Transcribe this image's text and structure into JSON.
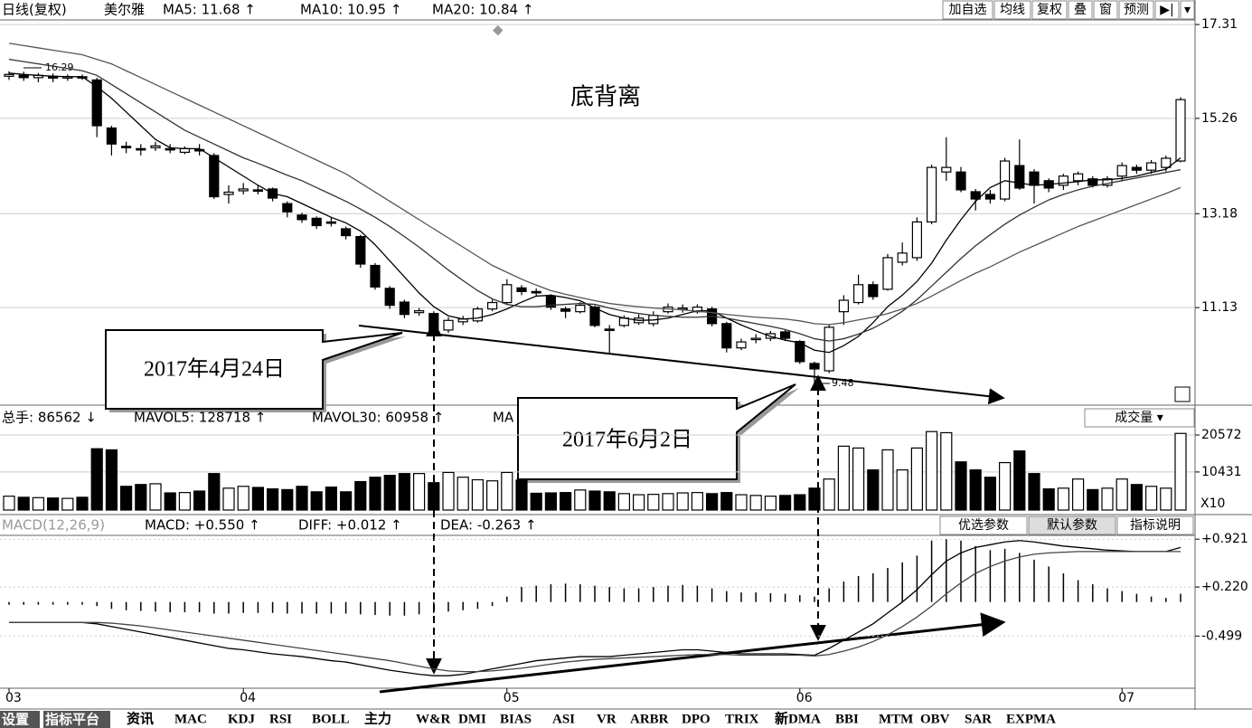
{
  "header": {
    "legend": [
      "日线(复权)",
      "美尔雅",
      "MA5: 11.68 ↑",
      "MA10: 10.95 ↑",
      "MA20: 10.84 ↑"
    ],
    "buttons": [
      "加自选",
      "均线",
      "复权",
      "叠",
      "窗",
      "预测",
      "▶|",
      "▾"
    ]
  },
  "volume_header": {
    "legend": [
      "总手: 86562 ↓",
      "MAVOL5: 128718 ↑",
      "MAVOL30: 60958 ↑",
      "MA"
    ],
    "dropdown": "成交量 ▾"
  },
  "macd_header": {
    "legend": [
      "MACD(12,26,9)",
      "MACD: +0.550 ↑",
      "DIFF: +0.012 ↑",
      "DEA: -0.263 ↑"
    ],
    "buttons": [
      "优选参数",
      "默认参数",
      "指标说明"
    ]
  },
  "annotations": {
    "title": "底背离",
    "callouts": [
      "2017年4月24日",
      "2017年6月2日"
    ]
  },
  "tabs": [
    "设置",
    "指标平台",
    "资讯",
    "MAC",
    "KDJ",
    "RSI",
    "BOLL",
    "主力",
    "W&R",
    "DMI",
    "BIAS",
    "ASI",
    "VR",
    "ARBR",
    "DPO",
    "TRIX",
    "新DMA",
    "BBI",
    "MTM",
    "OBV",
    "SAR",
    "EXPMA"
  ],
  "chart_data": [
    {
      "type": "candlestick",
      "categories": [
        "03",
        null,
        null,
        null,
        null,
        null,
        null,
        null,
        null,
        null,
        null,
        null,
        null,
        null,
        null,
        null,
        "04",
        null,
        null,
        null,
        null,
        null,
        null,
        null,
        null,
        null,
        null,
        null,
        null,
        null,
        null,
        null,
        null,
        null,
        "05",
        null,
        null,
        null,
        null,
        null,
        null,
        null,
        null,
        null,
        null,
        null,
        null,
        null,
        null,
        null,
        null,
        null,
        null,
        null,
        "06",
        null,
        null,
        null,
        null,
        null,
        null,
        null,
        null,
        null,
        null,
        null,
        null,
        null,
        null,
        null,
        null,
        null,
        null,
        null,
        null,
        null,
        "07",
        null,
        null,
        null,
        null
      ],
      "open": [
        16.18,
        16.2,
        16.15,
        16.18,
        16.15,
        16.17,
        16.1,
        15.05,
        14.65,
        14.6,
        14.62,
        14.6,
        14.52,
        14.58,
        14.45,
        13.6,
        13.68,
        13.7,
        13.72,
        13.4,
        13.15,
        13.08,
        13.0,
        12.85,
        12.68,
        12.05,
        11.55,
        11.25,
        11.02,
        11.0,
        10.64,
        10.82,
        10.84,
        11.1,
        11.24,
        11.56,
        11.48,
        11.38,
        11.1,
        11.04,
        11.14,
        10.66,
        10.74,
        10.8,
        10.78,
        11.04,
        11.1,
        11.04,
        11.1,
        10.78,
        10.25,
        10.44,
        10.46,
        10.6,
        10.39,
        9.91,
        9.75,
        11.04,
        11.24,
        11.63,
        11.53,
        12.12,
        12.22,
        13.0,
        14.09,
        14.09,
        13.66,
        13.6,
        13.5,
        14.23,
        14.09,
        13.9,
        13.8,
        13.9,
        13.94,
        13.8,
        14.0,
        14.19,
        14.13,
        14.19,
        14.33
      ],
      "high": [
        16.29,
        16.28,
        16.25,
        16.24,
        16.22,
        16.22,
        16.15,
        15.1,
        14.75,
        14.7,
        14.75,
        14.7,
        14.65,
        14.7,
        14.5,
        13.8,
        13.85,
        13.8,
        13.75,
        13.45,
        13.2,
        13.12,
        13.1,
        12.9,
        12.72,
        12.1,
        11.6,
        11.3,
        11.12,
        11.05,
        10.92,
        10.95,
        11.15,
        11.3,
        11.75,
        11.62,
        11.55,
        11.42,
        11.15,
        11.25,
        11.18,
        10.75,
        10.96,
        10.98,
        11.05,
        11.22,
        11.2,
        11.2,
        11.15,
        10.82,
        10.45,
        10.55,
        10.62,
        10.64,
        10.42,
        9.95,
        10.75,
        11.4,
        11.85,
        11.7,
        12.3,
        12.55,
        13.1,
        14.25,
        14.85,
        14.2,
        13.72,
        13.7,
        14.4,
        14.8,
        14.15,
        13.95,
        14.05,
        14.1,
        14.0,
        14.0,
        14.3,
        14.25,
        14.35,
        14.45,
        15.72
      ],
      "low": [
        16.1,
        16.08,
        16.05,
        16.05,
        16.08,
        16.1,
        14.85,
        14.45,
        14.5,
        14.45,
        14.55,
        14.5,
        14.48,
        14.45,
        13.5,
        13.4,
        13.6,
        13.6,
        13.45,
        13.1,
        12.98,
        12.85,
        12.9,
        12.62,
        12.0,
        11.52,
        11.1,
        10.9,
        10.95,
        10.5,
        10.58,
        10.75,
        10.8,
        11.05,
        11.2,
        11.4,
        11.38,
        11.08,
        10.9,
        11.0,
        10.7,
        10.14,
        10.7,
        10.75,
        10.72,
        11.0,
        11.02,
        11.0,
        10.72,
        10.15,
        10.2,
        10.35,
        10.4,
        10.4,
        9.9,
        9.48,
        9.7,
        10.75,
        11.2,
        11.3,
        11.5,
        12.05,
        12.15,
        12.95,
        13.9,
        13.65,
        13.25,
        13.4,
        13.45,
        13.7,
        13.4,
        13.65,
        13.7,
        13.8,
        13.75,
        13.75,
        13.9,
        14.05,
        14.05,
        14.1,
        14.3
      ],
      "close": [
        16.22,
        16.15,
        16.2,
        16.14,
        16.17,
        16.15,
        15.1,
        14.7,
        14.63,
        14.58,
        14.66,
        14.58,
        14.6,
        14.56,
        13.55,
        13.65,
        13.72,
        13.68,
        13.52,
        13.22,
        13.05,
        12.92,
        12.98,
        12.7,
        12.08,
        11.58,
        11.18,
        10.98,
        11.06,
        10.58,
        10.85,
        10.88,
        11.1,
        11.24,
        11.63,
        11.48,
        11.46,
        11.14,
        11.05,
        11.18,
        10.74,
        10.64,
        10.9,
        10.9,
        10.96,
        11.14,
        11.12,
        11.14,
        10.78,
        10.25,
        10.38,
        10.46,
        10.56,
        10.46,
        9.95,
        9.79,
        10.7,
        11.29,
        11.63,
        11.37,
        12.22,
        12.32,
        13.0,
        14.19,
        14.19,
        13.7,
        13.5,
        13.5,
        14.33,
        13.74,
        13.8,
        13.74,
        14.0,
        14.05,
        13.8,
        13.94,
        14.23,
        14.13,
        14.29,
        14.39,
        15.67
      ],
      "up_color": "#ffffff",
      "down_color": "#000000",
      "series": [
        {
          "color": "#000000",
          "values": [
            16.25,
            16.22,
            16.2,
            16.18,
            16.17,
            16.17,
            15.95,
            15.7,
            15.4,
            15.1,
            14.8,
            14.62,
            14.6,
            14.6,
            14.4,
            14.2,
            14.0,
            13.8,
            13.62,
            13.55,
            13.4,
            13.25,
            13.1,
            12.98,
            12.8,
            12.5,
            12.15,
            11.8,
            11.45,
            11.15,
            10.95,
            10.88,
            10.9,
            10.98,
            11.1,
            11.25,
            11.38,
            11.4,
            11.35,
            11.28,
            11.12,
            10.98,
            10.9,
            10.85,
            10.86,
            10.9,
            10.98,
            11.06,
            11.06,
            10.9,
            10.75,
            10.62,
            10.5,
            10.42,
            10.36,
            10.2,
            10.15,
            10.3,
            10.5,
            10.8,
            11.15,
            11.4,
            11.7,
            12.1,
            12.6,
            13.05,
            13.45,
            13.75,
            13.9,
            13.85,
            13.8,
            13.82,
            13.85,
            13.88,
            13.92,
            13.92,
            13.95,
            14.0,
            14.08,
            14.15,
            14.4
          ]
        },
        {
          "color": "#333333",
          "values": [
            16.55,
            16.5,
            16.45,
            16.4,
            16.35,
            16.3,
            16.2,
            16.0,
            15.8,
            15.6,
            15.4,
            15.2,
            15.0,
            14.85,
            14.7,
            14.55,
            14.4,
            14.28,
            14.15,
            14.02,
            13.9,
            13.75,
            13.6,
            13.45,
            13.28,
            13.1,
            12.9,
            12.68,
            12.45,
            12.2,
            11.95,
            11.72,
            11.5,
            11.32,
            11.2,
            11.15,
            11.15,
            11.18,
            11.2,
            11.22,
            11.2,
            11.12,
            11.05,
            11.0,
            10.96,
            10.94,
            10.92,
            10.92,
            10.94,
            10.9,
            10.84,
            10.78,
            10.72,
            10.65,
            10.56,
            10.45,
            10.4,
            10.45,
            10.55,
            10.68,
            10.85,
            11.05,
            11.3,
            11.6,
            11.9,
            12.2,
            12.48,
            12.72,
            12.95,
            13.15,
            13.32,
            13.48,
            13.6,
            13.7,
            13.78,
            13.84,
            13.9,
            13.96,
            14.02,
            14.08,
            14.14
          ]
        },
        {
          "color": "#555555",
          "values": [
            16.9,
            16.85,
            16.8,
            16.75,
            16.7,
            16.65,
            16.55,
            16.45,
            16.3,
            16.15,
            16.0,
            15.85,
            15.7,
            15.55,
            15.4,
            15.25,
            15.1,
            14.95,
            14.8,
            14.65,
            14.5,
            14.35,
            14.2,
            14.05,
            13.85,
            13.65,
            13.45,
            13.25,
            13.05,
            12.85,
            12.65,
            12.45,
            12.25,
            12.05,
            11.9,
            11.75,
            11.62,
            11.5,
            11.42,
            11.35,
            11.28,
            11.22,
            11.18,
            11.15,
            11.12,
            11.1,
            11.08,
            11.05,
            11.02,
            10.98,
            10.95,
            10.92,
            10.9,
            10.88,
            10.84,
            10.78,
            10.76,
            10.8,
            10.86,
            10.92,
            11.0,
            11.1,
            11.22,
            11.38,
            11.55,
            11.72,
            11.88,
            12.02,
            12.18,
            12.34,
            12.48,
            12.62,
            12.76,
            12.9,
            13.02,
            13.14,
            13.26,
            13.38,
            13.5,
            13.62,
            13.75
          ]
        }
      ],
      "ylim": [
        9.0,
        17.45
      ],
      "yticks": [
        17.31,
        15.26,
        13.18,
        11.13
      ],
      "grid": true
    },
    {
      "type": "bar",
      "y_unit": "X10",
      "values": [
        3800,
        3500,
        3400,
        3300,
        3200,
        3500,
        16800,
        16500,
        6500,
        7000,
        7200,
        4700,
        4800,
        5200,
        10000,
        6000,
        6500,
        6200,
        5800,
        5600,
        6500,
        5000,
        6300,
        5000,
        7800,
        9000,
        9500,
        10000,
        10000,
        7500,
        10300,
        9000,
        8300,
        8000,
        10300,
        8200,
        4600,
        4700,
        4800,
        5500,
        5200,
        5000,
        4500,
        4200,
        4300,
        4500,
        4700,
        4800,
        4500,
        4800,
        4200,
        4000,
        3800,
        4000,
        4200,
        6000,
        8500,
        17500,
        17000,
        11000,
        16500,
        11000,
        17000,
        21500,
        21200,
        13200,
        11000,
        9000,
        13000,
        16200,
        10000,
        5800,
        6000,
        8500,
        5600,
        6000,
        8500,
        7000,
        6500,
        6000,
        21000
      ],
      "ylim": [
        0,
        22800
      ],
      "yticks": [
        20572,
        10431
      ],
      "grid": true
    },
    {
      "type": "combo",
      "series": [
        {
          "type": "bar",
          "color": "#000000",
          "values": [
            -0.04,
            -0.04,
            -0.04,
            -0.04,
            -0.04,
            -0.04,
            -0.06,
            -0.1,
            -0.12,
            -0.13,
            -0.14,
            -0.15,
            -0.15,
            -0.15,
            -0.17,
            -0.17,
            -0.16,
            -0.16,
            -0.16,
            -0.17,
            -0.17,
            -0.17,
            -0.17,
            -0.17,
            -0.18,
            -0.19,
            -0.2,
            -0.2,
            -0.18,
            -0.16,
            -0.14,
            -0.12,
            -0.1,
            -0.06,
            0.08,
            0.22,
            0.24,
            0.26,
            0.27,
            0.26,
            0.24,
            0.22,
            0.2,
            0.2,
            0.22,
            0.24,
            0.25,
            0.24,
            0.2,
            0.16,
            0.14,
            0.14,
            0.13,
            0.12,
            0.1,
            0.08,
            0.2,
            0.3,
            0.38,
            0.42,
            0.5,
            0.58,
            0.68,
            0.9,
            0.92,
            0.9,
            0.82,
            0.76,
            0.78,
            0.72,
            0.62,
            0.52,
            0.42,
            0.32,
            0.26,
            0.2,
            0.16,
            0.12,
            0.08,
            0.06,
            0.12
          ]
        },
        {
          "type": "line",
          "color": "#000000",
          "values": [
            -0.3,
            -0.3,
            -0.3,
            -0.3,
            -0.3,
            -0.3,
            -0.32,
            -0.36,
            -0.4,
            -0.44,
            -0.48,
            -0.52,
            -0.56,
            -0.6,
            -0.64,
            -0.68,
            -0.7,
            -0.73,
            -0.76,
            -0.78,
            -0.8,
            -0.83,
            -0.86,
            -0.88,
            -0.92,
            -0.96,
            -1.0,
            -1.03,
            -1.06,
            -1.08,
            -1.08,
            -1.06,
            -1.02,
            -0.98,
            -0.94,
            -0.9,
            -0.86,
            -0.84,
            -0.82,
            -0.8,
            -0.8,
            -0.8,
            -0.78,
            -0.76,
            -0.74,
            -0.72,
            -0.7,
            -0.7,
            -0.72,
            -0.74,
            -0.76,
            -0.76,
            -0.76,
            -0.76,
            -0.77,
            -0.78,
            -0.68,
            -0.56,
            -0.44,
            -0.32,
            -0.16,
            0.0,
            0.18,
            0.4,
            0.6,
            0.72,
            0.8,
            0.84,
            0.88,
            0.9,
            0.88,
            0.85,
            0.82,
            0.8,
            0.78,
            0.76,
            0.75,
            0.74,
            0.74,
            0.74,
            0.8
          ]
        },
        {
          "type": "line",
          "color": "#444444",
          "values": [
            -0.3,
            -0.3,
            -0.3,
            -0.3,
            -0.3,
            -0.3,
            -0.3,
            -0.31,
            -0.33,
            -0.35,
            -0.38,
            -0.41,
            -0.44,
            -0.47,
            -0.5,
            -0.53,
            -0.56,
            -0.59,
            -0.62,
            -0.65,
            -0.68,
            -0.71,
            -0.74,
            -0.77,
            -0.8,
            -0.83,
            -0.86,
            -0.9,
            -0.94,
            -0.98,
            -1.01,
            -1.02,
            -1.02,
            -1.01,
            -0.99,
            -0.97,
            -0.94,
            -0.91,
            -0.88,
            -0.86,
            -0.84,
            -0.83,
            -0.82,
            -0.81,
            -0.8,
            -0.79,
            -0.78,
            -0.77,
            -0.77,
            -0.77,
            -0.78,
            -0.78,
            -0.78,
            -0.78,
            -0.78,
            -0.79,
            -0.77,
            -0.72,
            -0.66,
            -0.58,
            -0.48,
            -0.36,
            -0.22,
            -0.06,
            0.12,
            0.28,
            0.42,
            0.52,
            0.6,
            0.66,
            0.7,
            0.72,
            0.73,
            0.74,
            0.74,
            0.74,
            0.74,
            0.74,
            0.74,
            0.74,
            0.74
          ]
        }
      ],
      "ylim": [
        -1.25,
        0.95
      ],
      "yticks": [
        {
          "value": 0.921,
          "label": "+0.921"
        },
        {
          "value": 0.22,
          "label": "+0.220"
        },
        {
          "value": -0.499,
          "label": "-0.499"
        }
      ],
      "grid": true
    }
  ]
}
